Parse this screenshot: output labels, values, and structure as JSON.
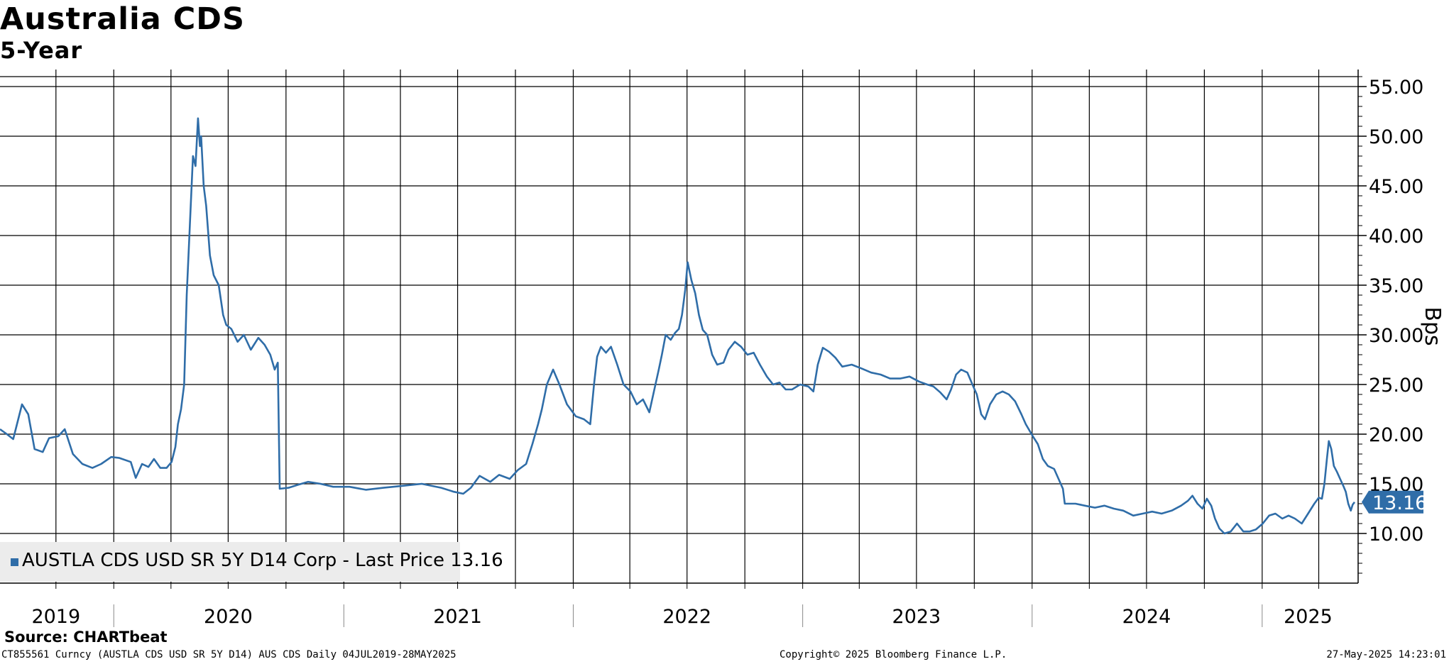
{
  "title": "Australia CDS",
  "subtitle": "5-Year",
  "legend": "AUSTLA CDS USD SR 5Y D14 Corp - Last Price 13.16",
  "source": "Source: CHARTbeat",
  "footer": {
    "left": "CT855561 Curncy (AUSTLA CDS USD SR 5Y D14) AUS CDS  Daily 04JUL2019-28MAY2025",
    "mid": "Copyright© 2025 Bloomberg Finance L.P.",
    "right": "27-May-2025 14:23:01"
  },
  "colors": {
    "line": "#2f6da8",
    "grid": "#000000",
    "legend_bg": "#ececec",
    "last_price_tag": "#2f6da8"
  },
  "chart_data": {
    "type": "line",
    "title": "Australia CDS",
    "subtitle": "5-Year",
    "ylabel": "Bps",
    "xlabel": "",
    "ylim": [
      5,
      56
    ],
    "xlim": [
      "2019-07-04",
      "2025-05-28"
    ],
    "y_ticks": [
      "10.00",
      "15.00",
      "20.00",
      "25.00",
      "30.00",
      "35.00",
      "40.00",
      "45.00",
      "50.00",
      "55.00"
    ],
    "x_year_labels": [
      {
        "label": "2019",
        "date": "2019-10-01"
      },
      {
        "label": "2020",
        "date": "2020-07-01"
      },
      {
        "label": "2021",
        "date": "2021-07-01"
      },
      {
        "label": "2022",
        "date": "2022-07-01"
      },
      {
        "label": "2023",
        "date": "2023-07-01"
      },
      {
        "label": "2024",
        "date": "2024-07-01"
      },
      {
        "label": "2025",
        "date": "2025-03-15"
      }
    ],
    "year_separators": [
      "2020-01-01",
      "2021-01-01",
      "2022-01-01",
      "2023-01-01",
      "2024-01-01",
      "2025-01-01"
    ],
    "vertical_grid_dates": [
      "2019-10-01",
      "2020-01-01",
      "2020-04-01",
      "2020-07-01",
      "2020-10-01",
      "2021-01-01",
      "2021-04-01",
      "2021-07-01",
      "2021-10-01",
      "2022-01-01",
      "2022-04-01",
      "2022-07-01",
      "2022-10-01",
      "2023-01-01",
      "2023-04-01",
      "2023-07-01",
      "2023-10-01",
      "2024-01-01",
      "2024-04-01",
      "2024-07-01",
      "2024-10-01",
      "2025-01-01",
      "2025-04-01"
    ],
    "grid": true,
    "legend_position": "bottom-left",
    "last_price": 13.16,
    "last_price_label": "13.16",
    "series": [
      {
        "name": "AUSTLA CDS USD SR 5Y D14 Corp - Last Price",
        "points": [
          [
            "2019-07-04",
            20.5
          ],
          [
            "2019-07-15",
            20.0
          ],
          [
            "2019-07-25",
            19.5
          ],
          [
            "2019-08-08",
            23.0
          ],
          [
            "2019-08-18",
            22.0
          ],
          [
            "2019-08-28",
            18.5
          ],
          [
            "2019-09-10",
            18.2
          ],
          [
            "2019-09-20",
            19.6
          ],
          [
            "2019-10-05",
            19.8
          ],
          [
            "2019-10-15",
            20.5
          ],
          [
            "2019-10-28",
            18.0
          ],
          [
            "2019-11-12",
            17.0
          ],
          [
            "2019-11-28",
            16.6
          ],
          [
            "2019-12-12",
            17.0
          ],
          [
            "2019-12-28",
            17.7
          ],
          [
            "2020-01-10",
            17.6
          ],
          [
            "2020-01-28",
            17.2
          ],
          [
            "2020-02-05",
            15.6
          ],
          [
            "2020-02-15",
            17.0
          ],
          [
            "2020-02-25",
            16.7
          ],
          [
            "2020-03-05",
            17.5
          ],
          [
            "2020-03-15",
            16.6
          ],
          [
            "2020-03-25",
            16.6
          ],
          [
            "2020-04-02",
            17.2
          ],
          [
            "2020-04-08",
            18.7
          ],
          [
            "2020-04-12",
            21.0
          ],
          [
            "2020-04-17",
            22.5
          ],
          [
            "2020-04-22",
            25.0
          ],
          [
            "2020-04-26",
            34.0
          ],
          [
            "2020-05-01",
            41.0
          ],
          [
            "2020-05-06",
            48.0
          ],
          [
            "2020-05-10",
            47.0
          ],
          [
            "2020-05-14",
            51.8
          ],
          [
            "2020-05-17",
            49.0
          ],
          [
            "2020-05-19",
            50.0
          ],
          [
            "2020-05-23",
            45.0
          ],
          [
            "2020-05-27",
            43.0
          ],
          [
            "2020-06-02",
            38.0
          ],
          [
            "2020-06-08",
            36.0
          ],
          [
            "2020-06-16",
            35.0
          ],
          [
            "2020-06-23",
            32.0
          ],
          [
            "2020-06-28",
            31.0
          ],
          [
            "2020-07-06",
            30.6
          ],
          [
            "2020-07-16",
            29.3
          ],
          [
            "2020-07-26",
            30.0
          ],
          [
            "2020-08-06",
            28.5
          ],
          [
            "2020-08-18",
            29.7
          ],
          [
            "2020-08-28",
            29.0
          ],
          [
            "2020-09-06",
            28.0
          ],
          [
            "2020-09-13",
            26.5
          ],
          [
            "2020-09-18",
            27.2
          ],
          [
            "2020-09-21",
            14.5
          ],
          [
            "2020-10-05",
            14.6
          ],
          [
            "2020-10-20",
            14.9
          ],
          [
            "2020-11-05",
            15.2
          ],
          [
            "2020-11-25",
            15.0
          ],
          [
            "2020-12-15",
            14.7
          ],
          [
            "2021-01-10",
            14.7
          ],
          [
            "2021-02-05",
            14.4
          ],
          [
            "2021-03-05",
            14.6
          ],
          [
            "2021-04-05",
            14.8
          ],
          [
            "2021-05-05",
            15.0
          ],
          [
            "2021-06-05",
            14.6
          ],
          [
            "2021-06-25",
            14.2
          ],
          [
            "2021-07-10",
            14.0
          ],
          [
            "2021-07-22",
            14.6
          ],
          [
            "2021-08-05",
            15.8
          ],
          [
            "2021-08-22",
            15.2
          ],
          [
            "2021-09-05",
            15.9
          ],
          [
            "2021-09-22",
            15.5
          ],
          [
            "2021-10-05",
            16.4
          ],
          [
            "2021-10-18",
            17.0
          ],
          [
            "2021-10-28",
            19.0
          ],
          [
            "2021-11-06",
            21.0
          ],
          [
            "2021-11-12",
            22.5
          ],
          [
            "2021-11-20",
            25.0
          ],
          [
            "2021-11-30",
            26.5
          ],
          [
            "2021-12-10",
            25.0
          ],
          [
            "2021-12-22",
            23.0
          ],
          [
            "2022-01-05",
            21.8
          ],
          [
            "2022-01-18",
            21.5
          ],
          [
            "2022-01-28",
            21.0
          ],
          [
            "2022-02-03",
            25.0
          ],
          [
            "2022-02-08",
            27.8
          ],
          [
            "2022-02-14",
            28.8
          ],
          [
            "2022-02-22",
            28.2
          ],
          [
            "2022-03-02",
            28.8
          ],
          [
            "2022-03-12",
            27.0
          ],
          [
            "2022-03-22",
            25.0
          ],
          [
            "2022-04-02",
            24.3
          ],
          [
            "2022-04-12",
            23.0
          ],
          [
            "2022-04-22",
            23.5
          ],
          [
            "2022-05-02",
            22.2
          ],
          [
            "2022-05-10",
            24.5
          ],
          [
            "2022-05-17",
            26.5
          ],
          [
            "2022-05-22",
            28.0
          ],
          [
            "2022-05-28",
            30.0
          ],
          [
            "2022-06-05",
            29.5
          ],
          [
            "2022-06-12",
            30.2
          ],
          [
            "2022-06-18",
            30.6
          ],
          [
            "2022-06-23",
            32.0
          ],
          [
            "2022-06-28",
            34.5
          ],
          [
            "2022-07-02",
            37.3
          ],
          [
            "2022-07-08",
            35.5
          ],
          [
            "2022-07-14",
            34.2
          ],
          [
            "2022-07-20",
            32.0
          ],
          [
            "2022-07-26",
            30.5
          ],
          [
            "2022-08-02",
            30.0
          ],
          [
            "2022-08-10",
            28.0
          ],
          [
            "2022-08-18",
            27.0
          ],
          [
            "2022-08-28",
            27.2
          ],
          [
            "2022-09-05",
            28.5
          ],
          [
            "2022-09-15",
            29.3
          ],
          [
            "2022-09-25",
            28.8
          ],
          [
            "2022-10-05",
            28.0
          ],
          [
            "2022-10-15",
            28.2
          ],
          [
            "2022-10-25",
            27.0
          ],
          [
            "2022-11-05",
            25.8
          ],
          [
            "2022-11-15",
            25.0
          ],
          [
            "2022-11-25",
            25.2
          ],
          [
            "2022-12-05",
            24.5
          ],
          [
            "2022-12-15",
            24.5
          ],
          [
            "2022-12-28",
            25.0
          ],
          [
            "2023-01-10",
            24.8
          ],
          [
            "2023-01-18",
            24.3
          ],
          [
            "2023-01-25",
            27.0
          ],
          [
            "2023-02-02",
            28.7
          ],
          [
            "2023-02-12",
            28.3
          ],
          [
            "2023-02-22",
            27.7
          ],
          [
            "2023-03-05",
            26.8
          ],
          [
            "2023-03-20",
            27.0
          ],
          [
            "2023-04-05",
            26.6
          ],
          [
            "2023-04-20",
            26.2
          ],
          [
            "2023-05-05",
            26.0
          ],
          [
            "2023-05-20",
            25.6
          ],
          [
            "2023-06-05",
            25.6
          ],
          [
            "2023-06-20",
            25.8
          ],
          [
            "2023-07-05",
            25.3
          ],
          [
            "2023-07-18",
            25.0
          ],
          [
            "2023-07-28",
            24.8
          ],
          [
            "2023-08-08",
            24.2
          ],
          [
            "2023-08-18",
            23.5
          ],
          [
            "2023-08-25",
            24.5
          ],
          [
            "2023-09-02",
            26.0
          ],
          [
            "2023-09-10",
            26.5
          ],
          [
            "2023-09-20",
            26.2
          ],
          [
            "2023-09-28",
            25.0
          ],
          [
            "2023-10-05",
            24.0
          ],
          [
            "2023-10-12",
            22.0
          ],
          [
            "2023-10-18",
            21.5
          ],
          [
            "2023-10-26",
            23.0
          ],
          [
            "2023-11-05",
            24.0
          ],
          [
            "2023-11-15",
            24.3
          ],
          [
            "2023-11-25",
            24.0
          ],
          [
            "2023-12-05",
            23.3
          ],
          [
            "2023-12-15",
            22.0
          ],
          [
            "2023-12-22",
            21.0
          ],
          [
            "2024-01-02",
            19.8
          ],
          [
            "2024-01-10",
            19.0
          ],
          [
            "2024-01-18",
            17.5
          ],
          [
            "2024-01-26",
            16.8
          ],
          [
            "2024-02-05",
            16.5
          ],
          [
            "2024-02-12",
            15.5
          ],
          [
            "2024-02-19",
            14.5
          ],
          [
            "2024-02-22",
            13.0
          ],
          [
            "2024-03-10",
            13.0
          ],
          [
            "2024-03-25",
            12.8
          ],
          [
            "2024-04-10",
            12.6
          ],
          [
            "2024-04-25",
            12.8
          ],
          [
            "2024-05-10",
            12.5
          ],
          [
            "2024-05-25",
            12.3
          ],
          [
            "2024-06-10",
            11.8
          ],
          [
            "2024-06-25",
            12.0
          ],
          [
            "2024-07-10",
            12.2
          ],
          [
            "2024-07-25",
            12.0
          ],
          [
            "2024-08-10",
            12.3
          ],
          [
            "2024-08-25",
            12.8
          ],
          [
            "2024-09-05",
            13.3
          ],
          [
            "2024-09-12",
            13.8
          ],
          [
            "2024-09-20",
            13.0
          ],
          [
            "2024-09-28",
            12.5
          ],
          [
            "2024-10-05",
            13.5
          ],
          [
            "2024-10-12",
            12.8
          ],
          [
            "2024-10-18",
            11.5
          ],
          [
            "2024-10-25",
            10.5
          ],
          [
            "2024-11-02",
            10.0
          ],
          [
            "2024-11-12",
            10.2
          ],
          [
            "2024-11-22",
            11.0
          ],
          [
            "2024-12-02",
            10.2
          ],
          [
            "2024-12-12",
            10.2
          ],
          [
            "2024-12-22",
            10.4
          ],
          [
            "2025-01-02",
            11.0
          ],
          [
            "2025-01-12",
            11.8
          ],
          [
            "2025-01-22",
            12.0
          ],
          [
            "2025-02-02",
            11.5
          ],
          [
            "2025-02-12",
            11.8
          ],
          [
            "2025-02-22",
            11.5
          ],
          [
            "2025-03-05",
            11.0
          ],
          [
            "2025-03-15",
            12.0
          ],
          [
            "2025-03-25",
            13.0
          ],
          [
            "2025-04-01",
            13.6
          ],
          [
            "2025-04-06",
            13.5
          ],
          [
            "2025-04-10",
            15.0
          ],
          [
            "2025-04-14",
            17.5
          ],
          [
            "2025-04-17",
            19.3
          ],
          [
            "2025-04-21",
            18.5
          ],
          [
            "2025-04-25",
            16.8
          ],
          [
            "2025-04-30",
            16.2
          ],
          [
            "2025-05-05",
            15.5
          ],
          [
            "2025-05-10",
            14.8
          ],
          [
            "2025-05-14",
            14.2
          ],
          [
            "2025-05-18",
            13.0
          ],
          [
            "2025-05-22",
            12.3
          ],
          [
            "2025-05-25",
            12.9
          ],
          [
            "2025-05-28",
            13.16
          ]
        ]
      }
    ]
  }
}
